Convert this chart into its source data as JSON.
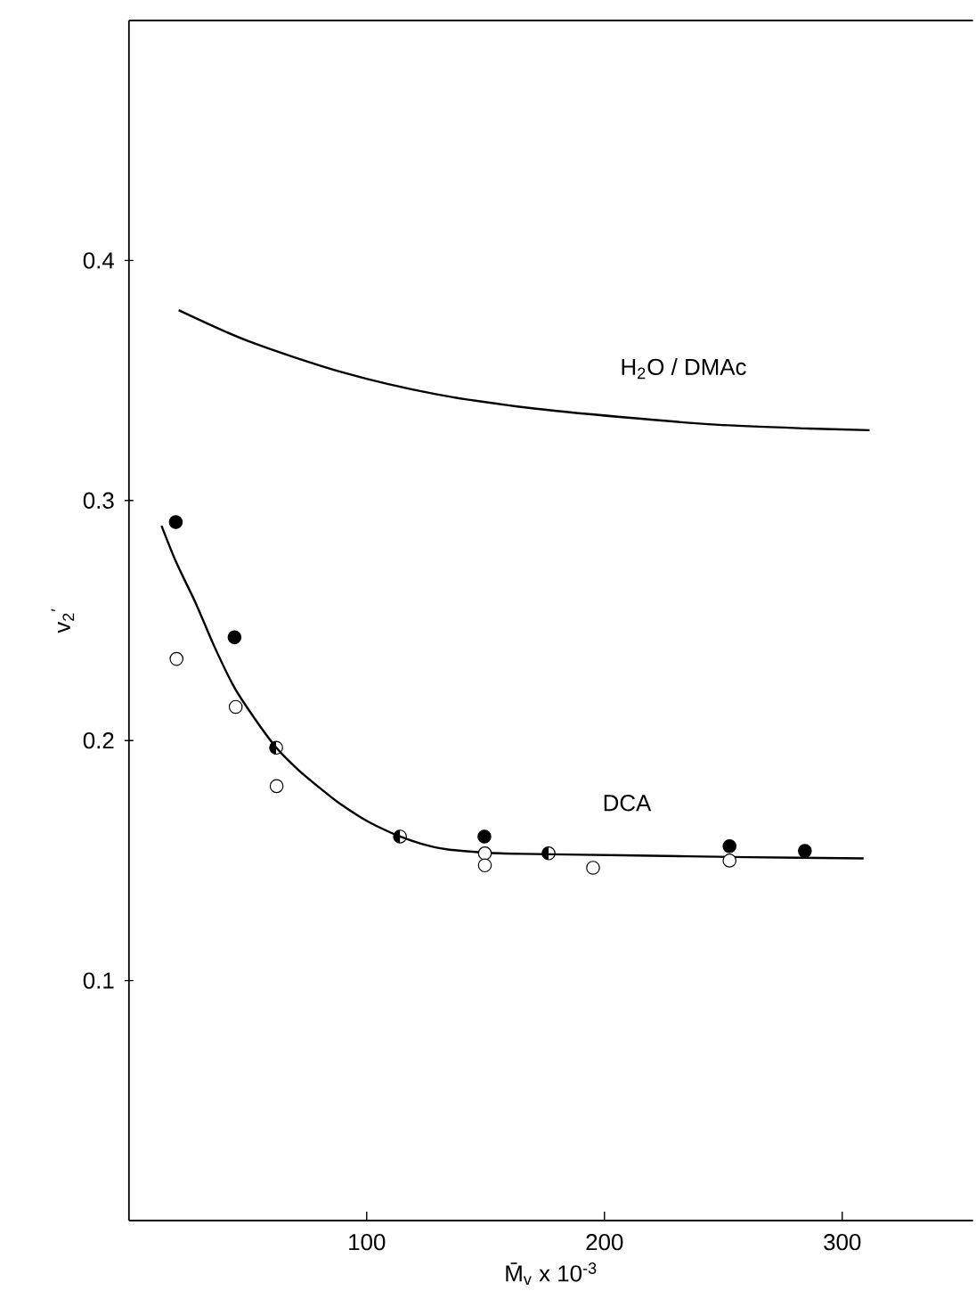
{
  "chart_data": {
    "type": "scatter",
    "xlabel": "M̄$_{v}$ x 10$^{-3}$",
    "ylabel": "v$_{2}$$^{′}$",
    "xlim": [
      0,
      355
    ],
    "ylim": [
      0,
      0.5
    ],
    "xticks": [
      100,
      200,
      300
    ],
    "yticks": [
      0.1,
      0.2,
      0.3,
      0.4
    ],
    "grid": false,
    "series": [
      {
        "marker": "circle",
        "color": "#000000",
        "x": [
          19.7,
          44.4,
          149.5,
          252.6,
          284.3
        ],
        "values": [
          0.291,
          0.243,
          0.16,
          0.156,
          0.154
        ]
      },
      {
        "marker": "circle",
        "color": "#ffffff",
        "x": [
          20,
          44.9,
          62.1,
          149.7,
          149.7,
          195.2,
          252.6
        ],
        "values": [
          0.234,
          0.214,
          0.181,
          0.153,
          0.148,
          0.147,
          0.15
        ]
      },
      {
        "marker": "halfcircle",
        "color": "#000000",
        "x": [
          61.9,
          114,
          176.5
        ],
        "values": [
          0.197,
          0.16,
          0.153
        ]
      },
      {
        "type": "line",
        "marker": "none",
        "color": "#000000",
        "x": [
          13.7,
          20,
          28.2,
          36,
          44.4,
          53,
          62,
          71,
          80.6,
          89,
          98,
          106,
          114,
          123,
          133,
          149.5,
          165,
          207.6,
          260,
          309
        ],
        "values": [
          0.2895,
          0.274,
          0.257,
          0.239,
          0.222,
          0.209,
          0.197,
          0.188,
          0.18,
          0.1735,
          0.1677,
          0.1635,
          0.16,
          0.157,
          0.1548,
          0.1533,
          0.1528,
          0.1522,
          0.1514,
          0.1509
        ]
      },
      {
        "type": "line",
        "marker": "none",
        "color": "#000000",
        "x": [
          20.9,
          50.5,
          89.8,
          129,
          168,
          207.6,
          246.9,
          286,
          311.5
        ],
        "values": [
          0.3793,
          0.3663,
          0.3534,
          0.3443,
          0.3386,
          0.3347,
          0.3316,
          0.33,
          0.3293
        ]
      }
    ],
    "annotations": [
      "H$_{2}$O / DMAc",
      "DCA"
    ]
  }
}
